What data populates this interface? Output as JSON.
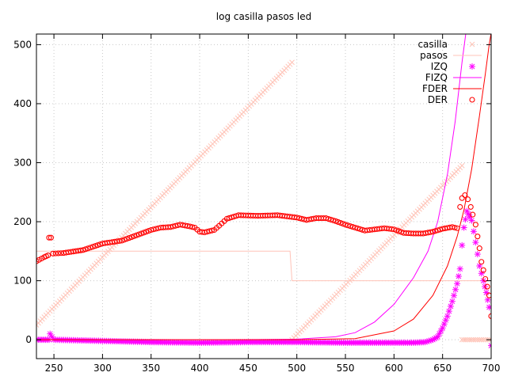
{
  "chart_data": {
    "type": "line",
    "title": "log casilla pasos led",
    "xlabel": "",
    "ylabel": "",
    "xlim": [
      232,
      700
    ],
    "ylim": [
      -32,
      518
    ],
    "xticks": [
      250,
      300,
      350,
      400,
      450,
      500,
      550,
      600,
      650,
      700
    ],
    "yticks": [
      0,
      100,
      200,
      300,
      400,
      500
    ],
    "grid": true,
    "legend_position": "top-right",
    "series": [
      {
        "name": "casilla",
        "style": "x",
        "color": "#ffc4b8",
        "segments": [
          [
            [
              232,
              25
            ],
            [
              495,
              470
            ]
          ],
          [
            [
              495,
              0
            ],
            [
              670,
              295
            ]
          ],
          [
            [
              670,
              0
            ],
            [
              700,
              0
            ]
          ]
        ]
      },
      {
        "name": "pasos",
        "style": "line",
        "color": "#ffc4b8",
        "points": [
          [
            232,
            150
          ],
          [
            493,
            150
          ],
          [
            495,
            100
          ],
          [
            700,
            100
          ]
        ]
      },
      {
        "name": "IZQ",
        "style": "star",
        "color": "#ff00ff",
        "points": [
          [
            232,
            0
          ],
          [
            245,
            0
          ],
          [
            246,
            10
          ],
          [
            250,
            0
          ],
          [
            300,
            -2
          ],
          [
            350,
            -4
          ],
          [
            400,
            -5
          ],
          [
            450,
            -4
          ],
          [
            500,
            -4
          ],
          [
            550,
            -5
          ],
          [
            600,
            -5
          ],
          [
            620,
            -5
          ],
          [
            632,
            -4
          ],
          [
            640,
            0
          ],
          [
            645,
            5
          ],
          [
            650,
            20
          ],
          [
            655,
            40
          ],
          [
            660,
            65
          ],
          [
            665,
            95
          ],
          [
            668,
            120
          ],
          [
            670,
            160
          ],
          [
            672,
            190
          ],
          [
            675,
            218
          ],
          [
            678,
            208
          ],
          [
            680,
            202
          ],
          [
            684,
            165
          ],
          [
            688,
            125
          ],
          [
            692,
            100
          ],
          [
            695,
            80
          ],
          [
            698,
            55
          ],
          [
            700,
            -10
          ]
        ]
      },
      {
        "name": "FIZQ",
        "style": "line",
        "color": "#ff00ff",
        "points": [
          [
            232,
            0
          ],
          [
            450,
            0
          ],
          [
            500,
            1
          ],
          [
            540,
            5
          ],
          [
            560,
            12
          ],
          [
            580,
            30
          ],
          [
            600,
            60
          ],
          [
            620,
            105
          ],
          [
            635,
            150
          ],
          [
            645,
            200
          ],
          [
            655,
            280
          ],
          [
            663,
            370
          ],
          [
            670,
            470
          ],
          [
            674,
            520
          ]
        ]
      },
      {
        "name": "FDER",
        "style": "line",
        "color": "#ff0000",
        "points": [
          [
            232,
            0
          ],
          [
            500,
            0
          ],
          [
            560,
            2
          ],
          [
            600,
            15
          ],
          [
            620,
            35
          ],
          [
            640,
            75
          ],
          [
            655,
            125
          ],
          [
            665,
            175
          ],
          [
            672,
            220
          ],
          [
            680,
            290
          ],
          [
            688,
            380
          ],
          [
            694,
            450
          ],
          [
            698,
            500
          ],
          [
            700,
            520
          ]
        ]
      },
      {
        "name": "DER",
        "style": "circle",
        "color": "#ff0000",
        "points": [
          [
            232,
            133
          ],
          [
            240,
            140
          ],
          [
            244,
            143
          ],
          [
            245,
            173
          ],
          [
            247,
            173
          ],
          [
            249,
            146
          ],
          [
            260,
            147
          ],
          [
            280,
            152
          ],
          [
            300,
            163
          ],
          [
            320,
            168
          ],
          [
            340,
            180
          ],
          [
            350,
            186
          ],
          [
            360,
            190
          ],
          [
            370,
            191
          ],
          [
            380,
            195
          ],
          [
            390,
            192
          ],
          [
            395,
            190
          ],
          [
            400,
            183
          ],
          [
            405,
            182
          ],
          [
            410,
            184
          ],
          [
            415,
            186
          ],
          [
            420,
            193
          ],
          [
            428,
            205
          ],
          [
            440,
            211
          ],
          [
            460,
            210
          ],
          [
            480,
            211
          ],
          [
            500,
            207
          ],
          [
            510,
            203
          ],
          [
            520,
            206
          ],
          [
            530,
            206
          ],
          [
            540,
            201
          ],
          [
            550,
            195
          ],
          [
            560,
            190
          ],
          [
            570,
            185
          ],
          [
            580,
            187
          ],
          [
            590,
            189
          ],
          [
            600,
            187
          ],
          [
            610,
            181
          ],
          [
            620,
            180
          ],
          [
            630,
            180
          ],
          [
            640,
            183
          ],
          [
            650,
            188
          ],
          [
            660,
            191
          ],
          [
            665,
            189
          ],
          [
            668,
            225
          ],
          [
            670,
            240
          ],
          [
            673,
            245
          ],
          [
            676,
            238
          ],
          [
            679,
            225
          ],
          [
            681,
            212
          ],
          [
            684,
            195
          ],
          [
            686,
            175
          ],
          [
            688,
            155
          ],
          [
            690,
            132
          ],
          [
            692,
            118
          ],
          [
            694,
            103
          ],
          [
            696,
            90
          ],
          [
            698,
            75
          ],
          [
            700,
            40
          ]
        ]
      }
    ]
  }
}
